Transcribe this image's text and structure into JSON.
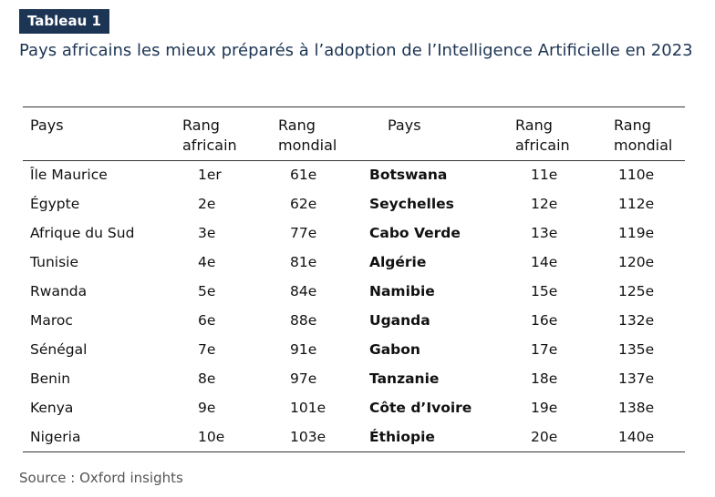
{
  "badge": "Tableau 1",
  "title": "Pays africains les mieux préparés à l’adoption de l’Intelligence Artificielle en 2023",
  "headers": {
    "pays_left": "Pays",
    "rang_africain_left_1": "Rang",
    "rang_africain_left_2": "africain",
    "rang_mondial_left_1": "Rang",
    "rang_mondial_left_2": "mondial",
    "pays_right": "Pays",
    "rang_africain_right_1": "Rang",
    "rang_africain_right_2": "africain",
    "rang_mondial_right_1": "Rang",
    "rang_mondial_right_2": "mondial"
  },
  "rows": [
    {
      "pays_l": "Île Maurice",
      "africain_l": "1er",
      "mondial_l": "61e",
      "pays_r": "Botswana",
      "africain_r": "11e",
      "mondial_r": "110e"
    },
    {
      "pays_l": "Égypte",
      "africain_l": "2e",
      "mondial_l": "62e",
      "pays_r": "Seychelles",
      "africain_r": "12e",
      "mondial_r": "112e"
    },
    {
      "pays_l": "Afrique du Sud",
      "africain_l": "3e",
      "mondial_l": "77e",
      "pays_r": "Cabo Verde",
      "africain_r": "13e",
      "mondial_r": "119e"
    },
    {
      "pays_l": "Tunisie",
      "africain_l": "4e",
      "mondial_l": "81e",
      "pays_r": "Algérie",
      "africain_r": "14e",
      "mondial_r": "120e"
    },
    {
      "pays_l": "Rwanda",
      "africain_l": "5e",
      "mondial_l": "84e",
      "pays_r": "Namibie",
      "africain_r": "15e",
      "mondial_r": "125e"
    },
    {
      "pays_l": "Maroc",
      "africain_l": "6e",
      "mondial_l": "88e",
      "pays_r": "Uganda",
      "africain_r": "16e",
      "mondial_r": "132e"
    },
    {
      "pays_l": "Sénégal",
      "africain_l": "7e",
      "mondial_l": "91e",
      "pays_r": "Gabon",
      "africain_r": "17e",
      "mondial_r": "135e"
    },
    {
      "pays_l": "Benin",
      "africain_l": "8e",
      "mondial_l": "97e",
      "pays_r": "Tanzanie",
      "africain_r": "18e",
      "mondial_r": "137e"
    },
    {
      "pays_l": "Kenya",
      "africain_l": "9e",
      "mondial_l": "101e",
      "pays_r": "Côte d’Ivoire",
      "africain_r": "19e",
      "mondial_r": "138e"
    },
    {
      "pays_l": "Nigeria",
      "africain_l": "10e",
      "mondial_l": "103e",
      "pays_r": "Éthiopie",
      "africain_r": "20e",
      "mondial_r": "140e"
    }
  ],
  "source": "Source : Oxford insights",
  "colors": {
    "badge_bg": "#1d3554",
    "title": "#1d3554",
    "source": "#555555"
  }
}
